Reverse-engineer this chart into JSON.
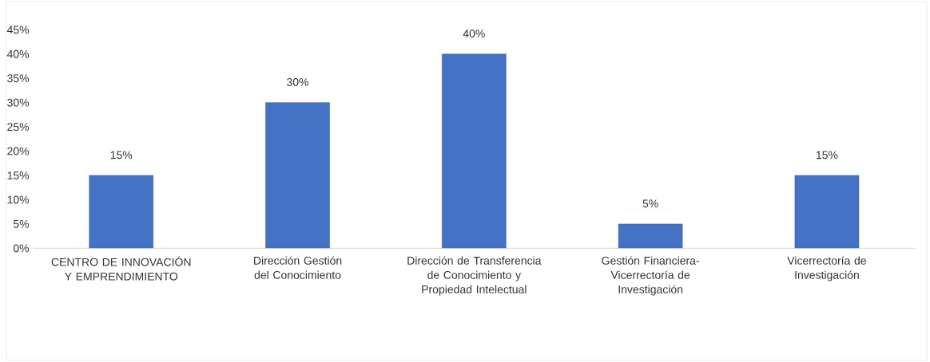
{
  "chart_data": {
    "type": "bar",
    "categories": [
      "CENTRO DE INNOVACIÓN Y EMPRENDIMIENTO",
      "Dirección Gestión del Conocimiento",
      "Dirección de Transferencia de Conocimiento y Propiedad Intelectual",
      "Gestión Financiera-Vicerrectoría de Investigación",
      "Vicerrectoría de Investigación"
    ],
    "values": [
      15,
      30,
      40,
      5,
      15
    ],
    "value_labels": [
      "15%",
      "30%",
      "40%",
      "5%",
      "15%"
    ],
    "color": "#4472c4",
    "ylim": [
      0,
      45
    ],
    "yticks": [
      {
        "value": 0,
        "label": "0%"
      },
      {
        "value": 5,
        "label": "5%"
      },
      {
        "value": 10,
        "label": "10%"
      },
      {
        "value": 15,
        "label": "15%"
      },
      {
        "value": 20,
        "label": "20%"
      },
      {
        "value": 25,
        "label": "25%"
      },
      {
        "value": 30,
        "label": "30%"
      },
      {
        "value": 35,
        "label": "35%"
      },
      {
        "value": 40,
        "label": "40%"
      },
      {
        "value": 45,
        "label": "45%"
      }
    ],
    "grid": false
  }
}
